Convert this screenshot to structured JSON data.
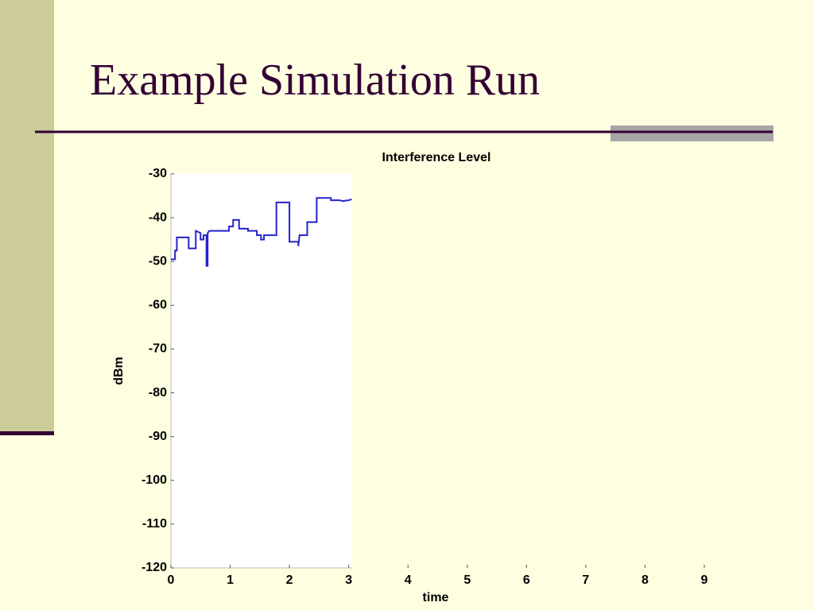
{
  "slide_title": "Example Simulation Run",
  "chart_data": {
    "type": "line",
    "title": "Interference Level",
    "x_label": "time",
    "y_label": "dBm",
    "color": "#2323c8",
    "x": [
      0,
      0.07,
      0.07,
      0.1,
      0.1,
      0.3,
      0.3,
      0.42,
      0.42,
      0.5,
      0.5,
      0.55,
      0.55,
      0.6,
      0.6,
      0.62,
      0.62,
      0.65,
      0.98,
      0.98,
      1.05,
      1.05,
      1.15,
      1.15,
      1.3,
      1.3,
      1.45,
      1.45,
      1.52,
      1.52,
      1.57,
      1.57,
      1.78,
      1.78,
      2.0,
      2.0,
      2.15,
      2.15,
      2.17,
      2.3,
      2.3,
      2.46,
      2.46,
      2.7,
      2.7,
      2.8,
      2.85,
      2.9,
      3.0,
      3.05
    ],
    "values": [
      -49.5,
      -49.5,
      -47.5,
      -47.5,
      -44.5,
      -44.5,
      -47,
      -47,
      -43,
      -43.5,
      -45,
      -45,
      -44,
      -44,
      -51,
      -51,
      -43.5,
      -43,
      -43,
      -42,
      -42,
      -40.5,
      -40.5,
      -42.5,
      -42.5,
      -43,
      -43,
      -44,
      -44,
      -45,
      -45,
      -44,
      -44,
      -36.5,
      -36.5,
      -45.5,
      -45.5,
      -46.5,
      -44,
      -44,
      -41,
      -41,
      -35.5,
      -35.5,
      -36,
      -36,
      -36,
      -36.2,
      -36,
      -35.8
    ],
    "xlim": [
      0,
      9
    ],
    "xticks": [
      0,
      1,
      2,
      3,
      4,
      5,
      6,
      7,
      8,
      9
    ],
    "ylim": [
      -120,
      -30
    ],
    "yticks": [
      -30,
      -40,
      -50,
      -60,
      -70,
      -80,
      -90,
      -100,
      -110,
      -120
    ]
  }
}
